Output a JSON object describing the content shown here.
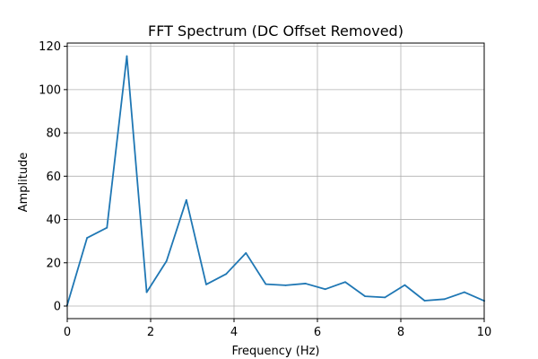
{
  "chart_data": {
    "type": "line",
    "title": "FFT Spectrum (DC Offset Removed)",
    "xlabel": "Frequency (Hz)",
    "ylabel": "Amplitude",
    "xlim": [
      0,
      10
    ],
    "ylim": [
      -5.8,
      121.5
    ],
    "grid": true,
    "x_ticks": [
      0,
      2,
      4,
      6,
      8,
      10
    ],
    "y_ticks": [
      0,
      20,
      40,
      60,
      80,
      100,
      120
    ],
    "series": [
      {
        "color": "#1f77b4",
        "x": [
          0.0,
          0.476,
          0.952,
          1.429,
          1.905,
          2.381,
          2.857,
          3.333,
          3.81,
          4.286,
          4.762,
          5.238,
          5.714,
          6.19,
          6.667,
          7.143,
          7.619,
          8.095,
          8.571,
          9.048,
          9.524,
          10.0
        ],
        "values": [
          0.5,
          31.5,
          36.2,
          115.5,
          6.4,
          20.8,
          49.0,
          10.0,
          14.8,
          24.5,
          10.1,
          9.6,
          10.4,
          7.8,
          11.1,
          4.5,
          4.0,
          9.7,
          2.5,
          3.2,
          6.4,
          2.4
        ]
      }
    ]
  }
}
